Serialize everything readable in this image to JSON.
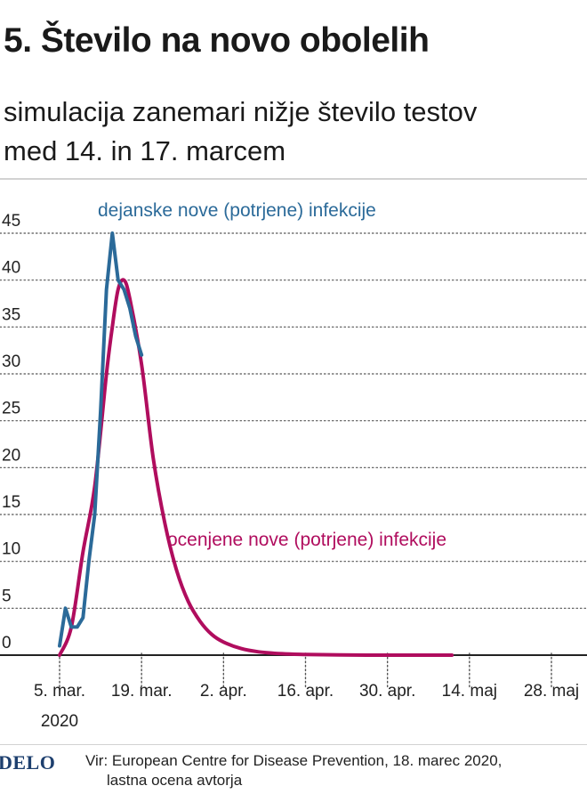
{
  "title": "5. Število na novo obolelih",
  "subtitle_lines": [
    "simulacija zanemari nižje število testov",
    "med 14. in 17. marcem"
  ],
  "footer": {
    "logo": "DELO",
    "source_line1": "Vir: European Centre for Disease Prevention, 18. marec 2020,",
    "source_line2": "lastna ocena avtorja"
  },
  "chart_data": {
    "type": "line",
    "title": "5. Število na novo obolelih",
    "subtitle": "simulacija zanemari nižje število testov med 14. in 17. marcem",
    "xlabel": "",
    "ylabel": "",
    "x_tick_labels": [
      "5. mar.",
      "19. mar.",
      "2. apr.",
      "16. apr.",
      "30. apr.",
      "14. maj",
      "28. maj"
    ],
    "x_tick_dates": [
      "2020-03-05",
      "2020-03-19",
      "2020-04-02",
      "2020-04-16",
      "2020-04-30",
      "2020-05-14",
      "2020-05-28"
    ],
    "x_year_label": "2020",
    "xlim": [
      "2020-03-05",
      "2020-05-28"
    ],
    "y_ticks": [
      0,
      5,
      10,
      15,
      20,
      25,
      30,
      35,
      40,
      45
    ],
    "y_tick_labels": [
      "0",
      "5",
      "10",
      "15",
      "20",
      "25",
      "30",
      "35",
      "40",
      "45"
    ],
    "ylim": [
      0,
      45
    ],
    "grid": "horizontal dotted",
    "colors": {
      "actual": "#2b6a99",
      "estimated": "#b00d5e",
      "axis": "#222222",
      "grid": "#555555"
    },
    "series": [
      {
        "name": "dejanske nove (potrjene) infekcije",
        "color": "#2b6a99",
        "x": [
          "2020-03-05",
          "2020-03-06",
          "2020-03-07",
          "2020-03-08",
          "2020-03-09",
          "2020-03-10",
          "2020-03-11",
          "2020-03-12",
          "2020-03-13",
          "2020-03-14",
          "2020-03-15",
          "2020-03-16",
          "2020-03-17",
          "2020-03-18",
          "2020-03-19"
        ],
        "values": [
          1,
          5,
          3,
          3,
          4,
          10,
          15,
          26,
          39,
          45,
          40,
          39,
          37,
          34,
          32
        ]
      },
      {
        "name": "ocenjene nove (potrjene) infekcije",
        "color": "#b00d5e",
        "x": [
          "2020-03-05",
          "2020-03-07",
          "2020-03-09",
          "2020-03-11",
          "2020-03-13",
          "2020-03-14",
          "2020-03-15",
          "2020-03-16",
          "2020-03-17",
          "2020-03-19",
          "2020-03-21",
          "2020-03-23",
          "2020-03-25",
          "2020-03-27",
          "2020-03-29",
          "2020-03-31",
          "2020-04-02",
          "2020-04-05",
          "2020-04-08",
          "2020-04-12",
          "2020-04-16",
          "2020-04-22",
          "2020-04-30",
          "2020-05-07",
          "2020-05-11"
        ],
        "values": [
          0,
          3,
          11,
          18,
          30,
          35,
          39,
          40,
          38,
          31,
          21,
          14,
          9,
          5.7,
          3.6,
          2.2,
          1.4,
          0.7,
          0.35,
          0.15,
          0.07,
          0.02,
          0,
          0,
          0
        ]
      }
    ],
    "annotations": [
      {
        "text": "dejanske nove (potrjene) infekcije",
        "series": 0
      },
      {
        "text": "ocenjene nove (potrjene) infekcije",
        "series": 1
      }
    ]
  }
}
